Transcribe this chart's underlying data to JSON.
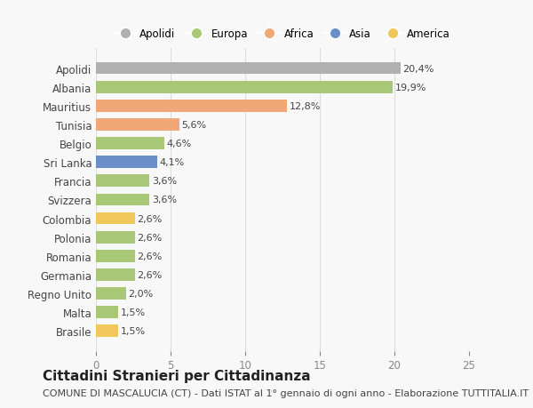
{
  "categories": [
    "Brasile",
    "Malta",
    "Regno Unito",
    "Germania",
    "Romania",
    "Polonia",
    "Colombia",
    "Svizzera",
    "Francia",
    "Sri Lanka",
    "Belgio",
    "Tunisia",
    "Mauritius",
    "Albania",
    "Apolidi"
  ],
  "values": [
    1.5,
    1.5,
    2.0,
    2.6,
    2.6,
    2.6,
    2.6,
    3.6,
    3.6,
    4.1,
    4.6,
    5.6,
    12.8,
    19.9,
    20.4
  ],
  "colors": [
    "#f0c75a",
    "#a8c878",
    "#a8c878",
    "#a8c878",
    "#a8c878",
    "#a8c878",
    "#f0c75a",
    "#a8c878",
    "#a8c878",
    "#6a8fc8",
    "#a8c878",
    "#f0a878",
    "#f0a878",
    "#a8c878",
    "#b0b0b0"
  ],
  "labels": [
    "1,5%",
    "1,5%",
    "2,0%",
    "2,6%",
    "2,6%",
    "2,6%",
    "2,6%",
    "3,6%",
    "3,6%",
    "4,1%",
    "4,6%",
    "5,6%",
    "12,8%",
    "19,9%",
    "20,4%"
  ],
  "legend": [
    {
      "label": "Apolidi",
      "color": "#b0b0b0"
    },
    {
      "label": "Europa",
      "color": "#a8c878"
    },
    {
      "label": "Africa",
      "color": "#f0a878"
    },
    {
      "label": "Asia",
      "color": "#6a8fc8"
    },
    {
      "label": "America",
      "color": "#f0c75a"
    }
  ],
  "title": "Cittadini Stranieri per Cittadinanza",
  "subtitle": "COMUNE DI MASCALUCIA (CT) - Dati ISTAT al 1° gennaio di ogni anno - Elaborazione TUTTITALIA.IT",
  "xlim": [
    0,
    25
  ],
  "xticks": [
    0,
    5,
    10,
    15,
    20,
    25
  ],
  "background_color": "#f8f8f8",
  "bar_height": 0.65,
  "title_fontsize": 11,
  "subtitle_fontsize": 8,
  "label_fontsize": 8,
  "tick_fontsize": 8.5
}
